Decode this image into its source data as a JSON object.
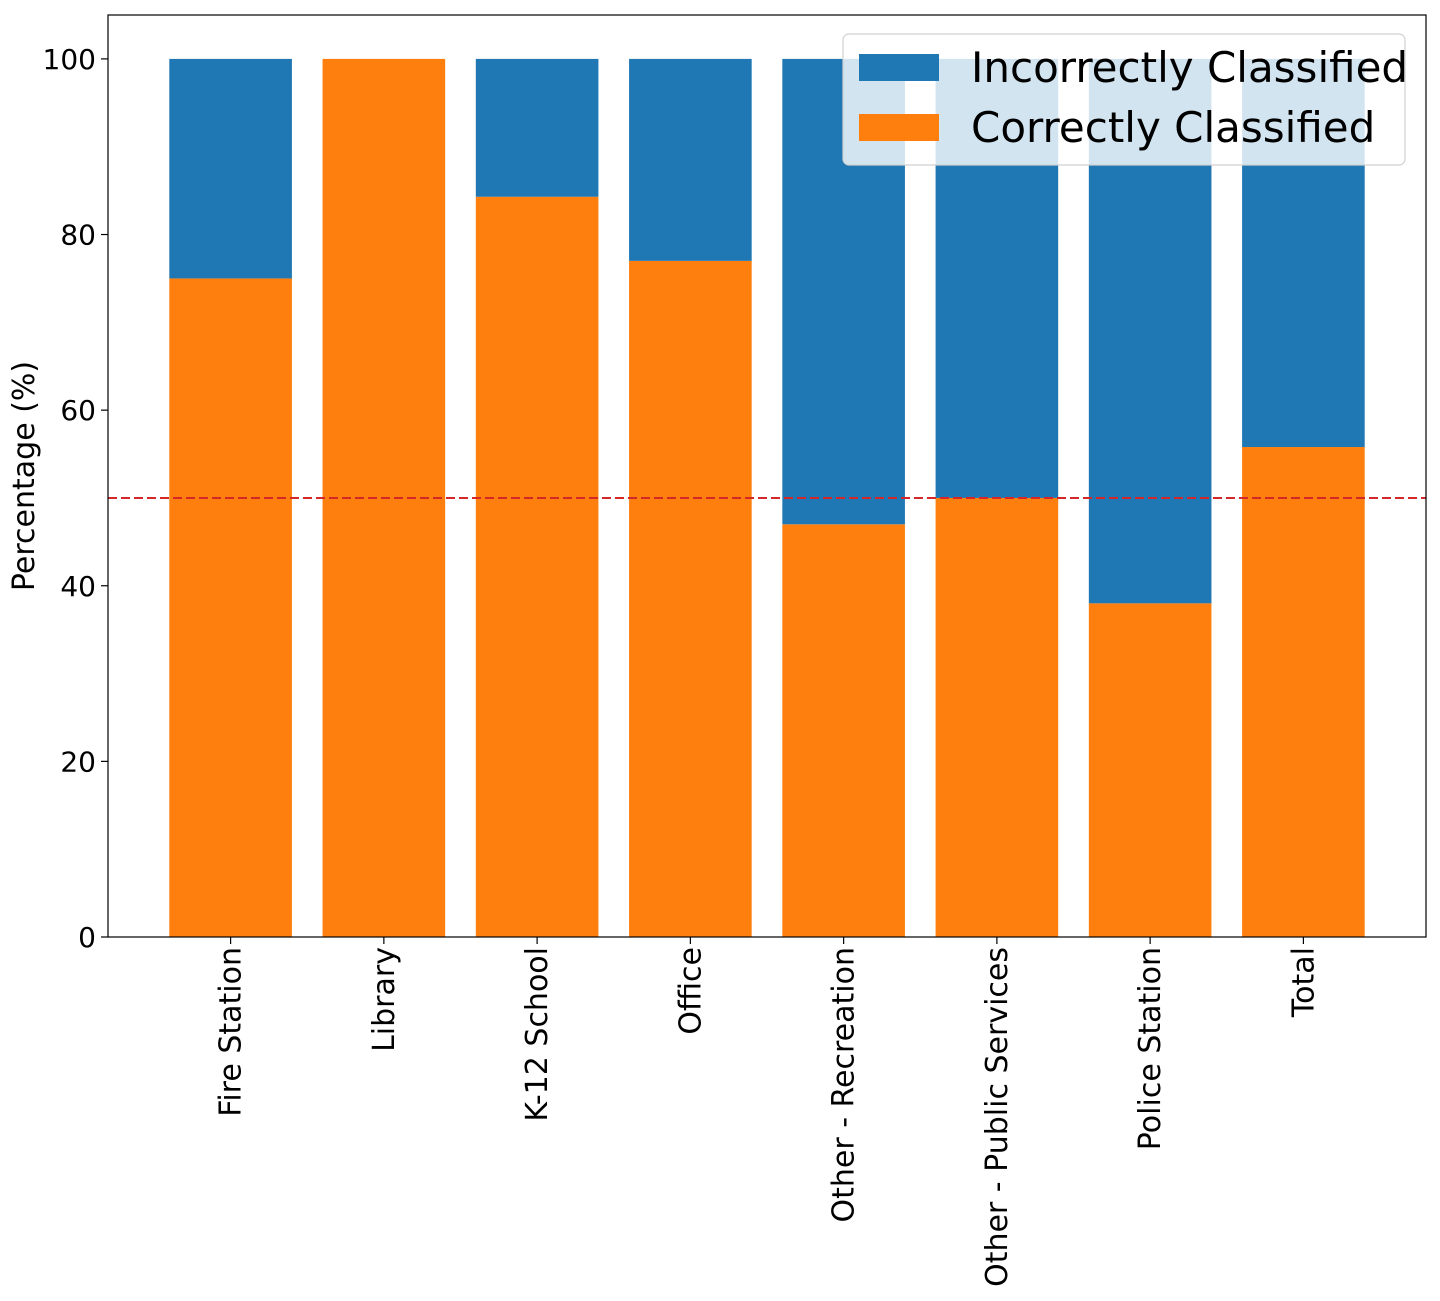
{
  "chart_data": {
    "type": "bar",
    "stacked": true,
    "title": "",
    "xlabel": "",
    "ylabel": "Percentage (%)",
    "ylim": [
      0,
      105
    ],
    "yticks": [
      0,
      20,
      40,
      60,
      80,
      100
    ],
    "grid": false,
    "legend_position": "top-right",
    "categories": [
      "Fire Station",
      "Library",
      "K-12 School",
      "Office",
      "Other - Recreation",
      "Other - Public Services",
      "Police Station",
      "Total"
    ],
    "series": [
      {
        "name": "Correctly Classified",
        "color": "#ff7f0e",
        "values": [
          75,
          100,
          84.3,
          77,
          47,
          50,
          38,
          55.8
        ]
      },
      {
        "name": "Incorrectly Classified",
        "color": "#1f77b4",
        "values": [
          25,
          0,
          15.7,
          23,
          53,
          50,
          62,
          44.2
        ]
      }
    ],
    "legend_order": [
      "Incorrectly Classified",
      "Correctly Classified"
    ],
    "reference_line": {
      "y": 50,
      "color": "#d62728",
      "style": "dashed"
    }
  }
}
